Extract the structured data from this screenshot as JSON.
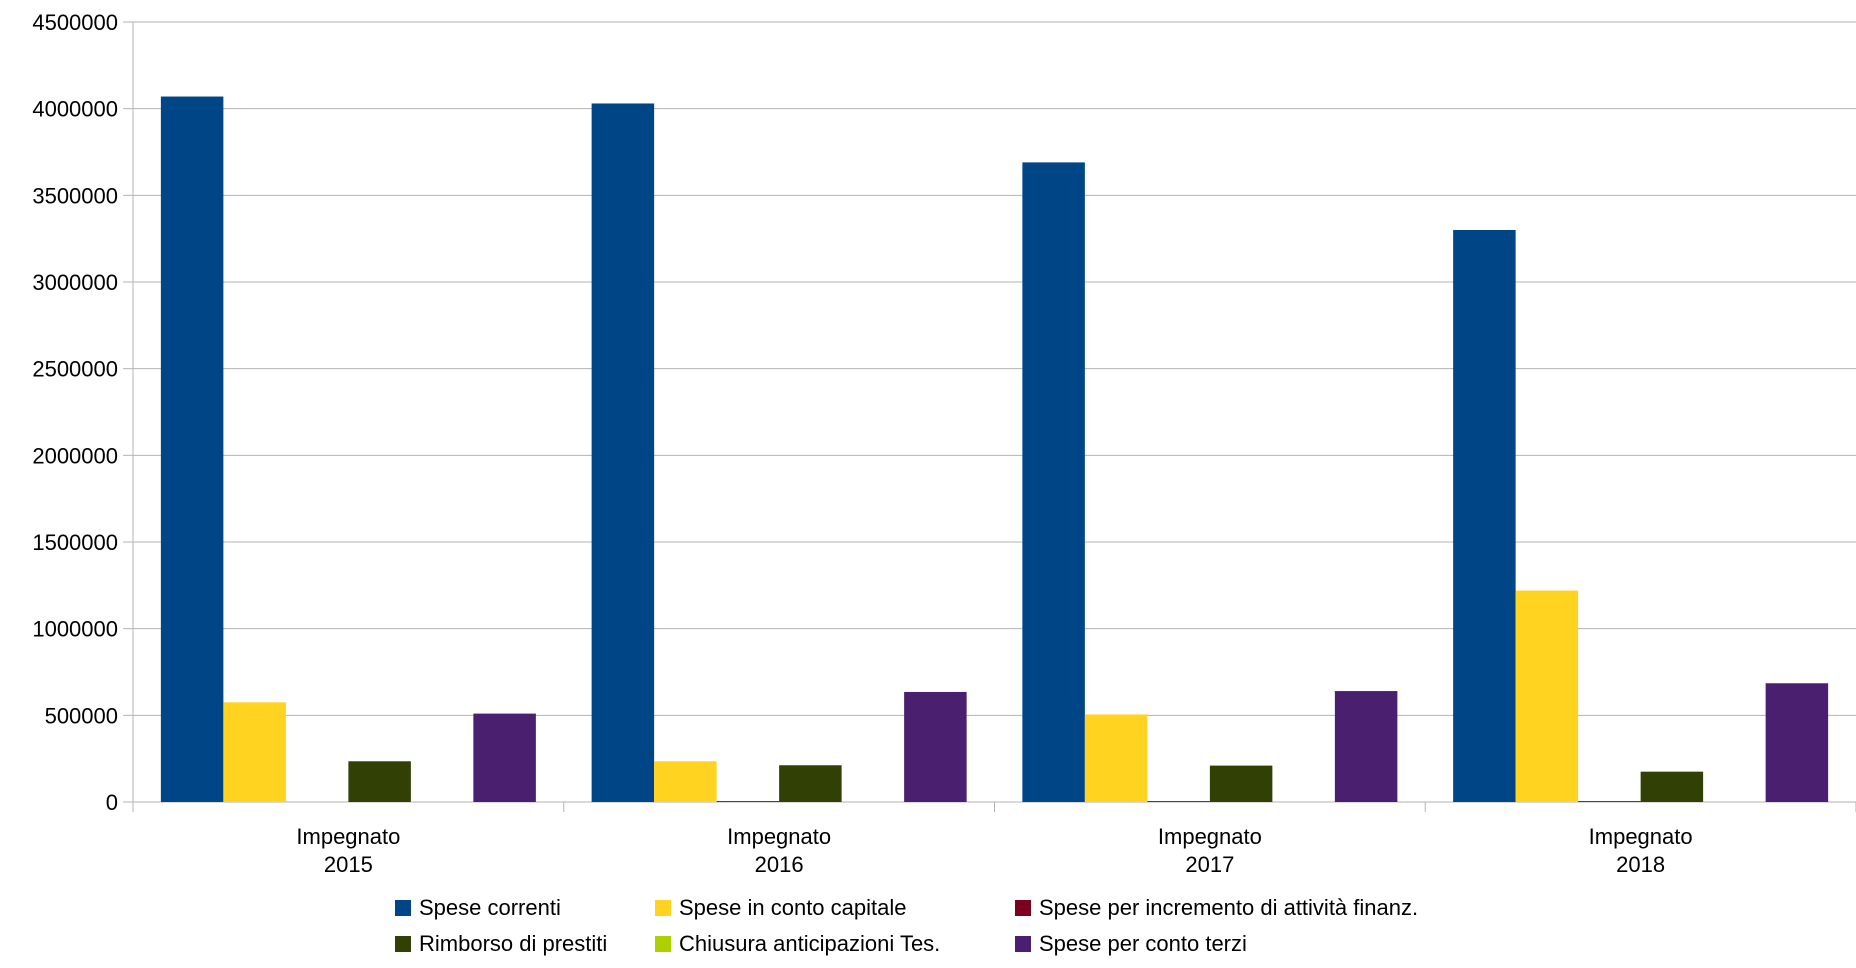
{
  "chart_data": {
    "type": "bar",
    "title": "",
    "xlabel": "",
    "ylabel": "",
    "ylim": [
      0,
      4500000
    ],
    "yticks": [
      0,
      500000,
      1000000,
      1500000,
      2000000,
      2500000,
      3000000,
      3500000,
      4000000,
      4500000
    ],
    "grid": true,
    "legend_position": "bottom",
    "categories": [
      [
        "Impegnato",
        "2015"
      ],
      [
        "Impegnato",
        "2016"
      ],
      [
        "Impegnato",
        "2017"
      ],
      [
        "Impegnato",
        "2018"
      ]
    ],
    "series": [
      {
        "name": "Spese correnti",
        "color": "#004586",
        "values": [
          4070000,
          4030000,
          3690000,
          3300000
        ]
      },
      {
        "name": "Spese in conto capitale",
        "color": "#ffd320",
        "values": [
          575000,
          235000,
          505000,
          1220000
        ]
      },
      {
        "name": "Spese per incremento di attività finanz.",
        "color": "#7e0021",
        "values": [
          0,
          5000,
          5000,
          5000
        ]
      },
      {
        "name": "Rimborso di prestiti",
        "color": "#314004",
        "values": [
          235000,
          212000,
          210000,
          175000
        ]
      },
      {
        "name": "Chiusura anticipazioni Tes.",
        "color": "#aecf00",
        "values": [
          0,
          0,
          0,
          0
        ]
      },
      {
        "name": "Spese per conto terzi",
        "color": "#4b1f6f",
        "values": [
          510000,
          635000,
          640000,
          685000
        ]
      }
    ]
  }
}
